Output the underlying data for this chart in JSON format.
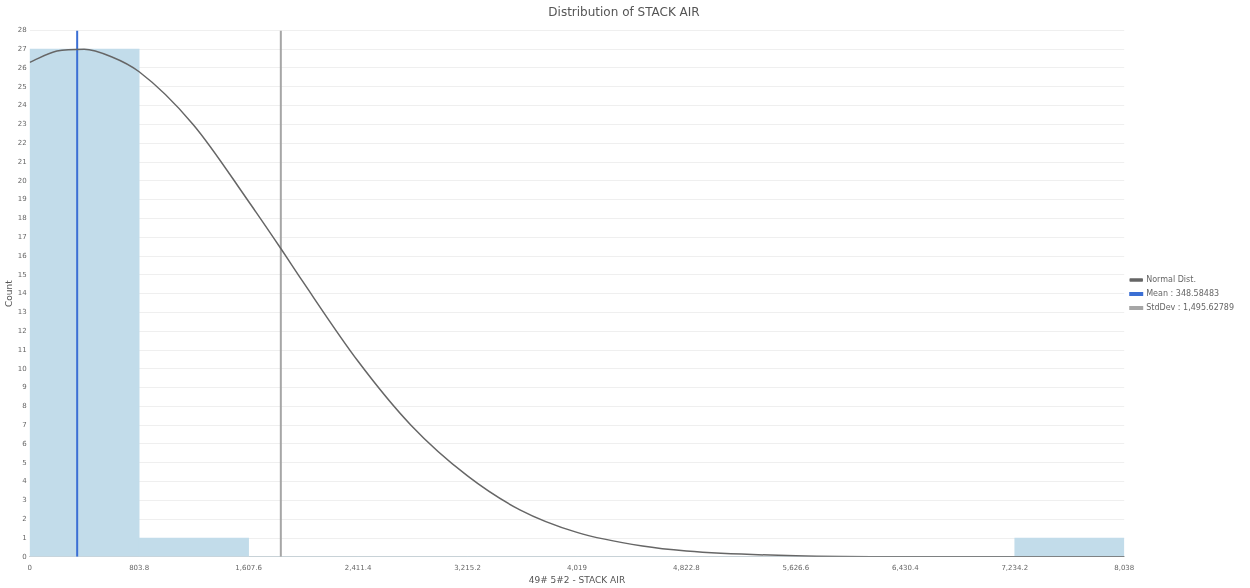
{
  "chart_data": {
    "type": "histogram",
    "title": "Distribution of STACK AIR",
    "xlabel": "49# 5#2 - STACK AIR",
    "ylabel": "Count",
    "bins": [
      0,
      803.8,
      1607.6,
      2411.4,
      3215.2,
      4019,
      4822.8,
      5626.6,
      6430.4,
      7234.2,
      8038
    ],
    "values": [
      27,
      1,
      0,
      0,
      0,
      0,
      0,
      0,
      0,
      1
    ],
    "color": "#c2dcea",
    "series": [
      {
        "type": "line",
        "name": "Normal Dist.",
        "color": "#666666",
        "marker": "none",
        "x": [
          0,
          200,
          400,
          600,
          803.8,
          1200,
          1607.6,
          1844,
          2000,
          2411.4,
          2800,
          3215.2,
          3600,
          4019,
          4500,
          4822.8,
          5626.6,
          6430.4,
          7234.2,
          8038
        ],
        "values": [
          26.3,
          26.9,
          27,
          26.6,
          25.8,
          23,
          18.9,
          16.4,
          14.7,
          10.4,
          7,
          4.3,
          2.5,
          1.3,
          0.57,
          0.31,
          0.05,
          0,
          0,
          0
        ]
      }
    ],
    "ref_lines": [
      {
        "axis": "x",
        "value": 348.58483,
        "color": "#3b6fd4"
      },
      {
        "axis": "x",
        "value": 1844.2,
        "color": "#a6a6a6"
      }
    ],
    "annotations": [
      "Mean : 348.58483",
      "StdDev : 1,495.62789"
    ],
    "xlim": [
      0,
      8038
    ],
    "xticks": [
      0,
      803.8,
      {
        "value": 1607.6,
        "label": "1,607.6"
      },
      {
        "value": 2411.4,
        "label": "2,411.4"
      },
      {
        "value": 3215.2,
        "label": "3,215.2"
      },
      {
        "value": 4019,
        "label": "4,019"
      },
      {
        "value": 4822.8,
        "label": "4,822.8"
      },
      {
        "value": 5626.6,
        "label": "5,626.6"
      },
      {
        "value": 6430.4,
        "label": "6,430.4"
      },
      {
        "value": 7234.2,
        "label": "7,234.2"
      },
      {
        "value": 8038,
        "label": "8,038"
      }
    ],
    "ylim": [
      0,
      28
    ],
    "yticks": [
      0,
      1,
      2,
      3,
      4,
      5,
      6,
      7,
      8,
      9,
      10,
      11,
      12,
      13,
      14,
      15,
      16,
      17,
      18,
      19,
      20,
      21,
      22,
      23,
      24,
      25,
      26,
      27,
      28
    ],
    "grid": "y",
    "legend": "right"
  }
}
